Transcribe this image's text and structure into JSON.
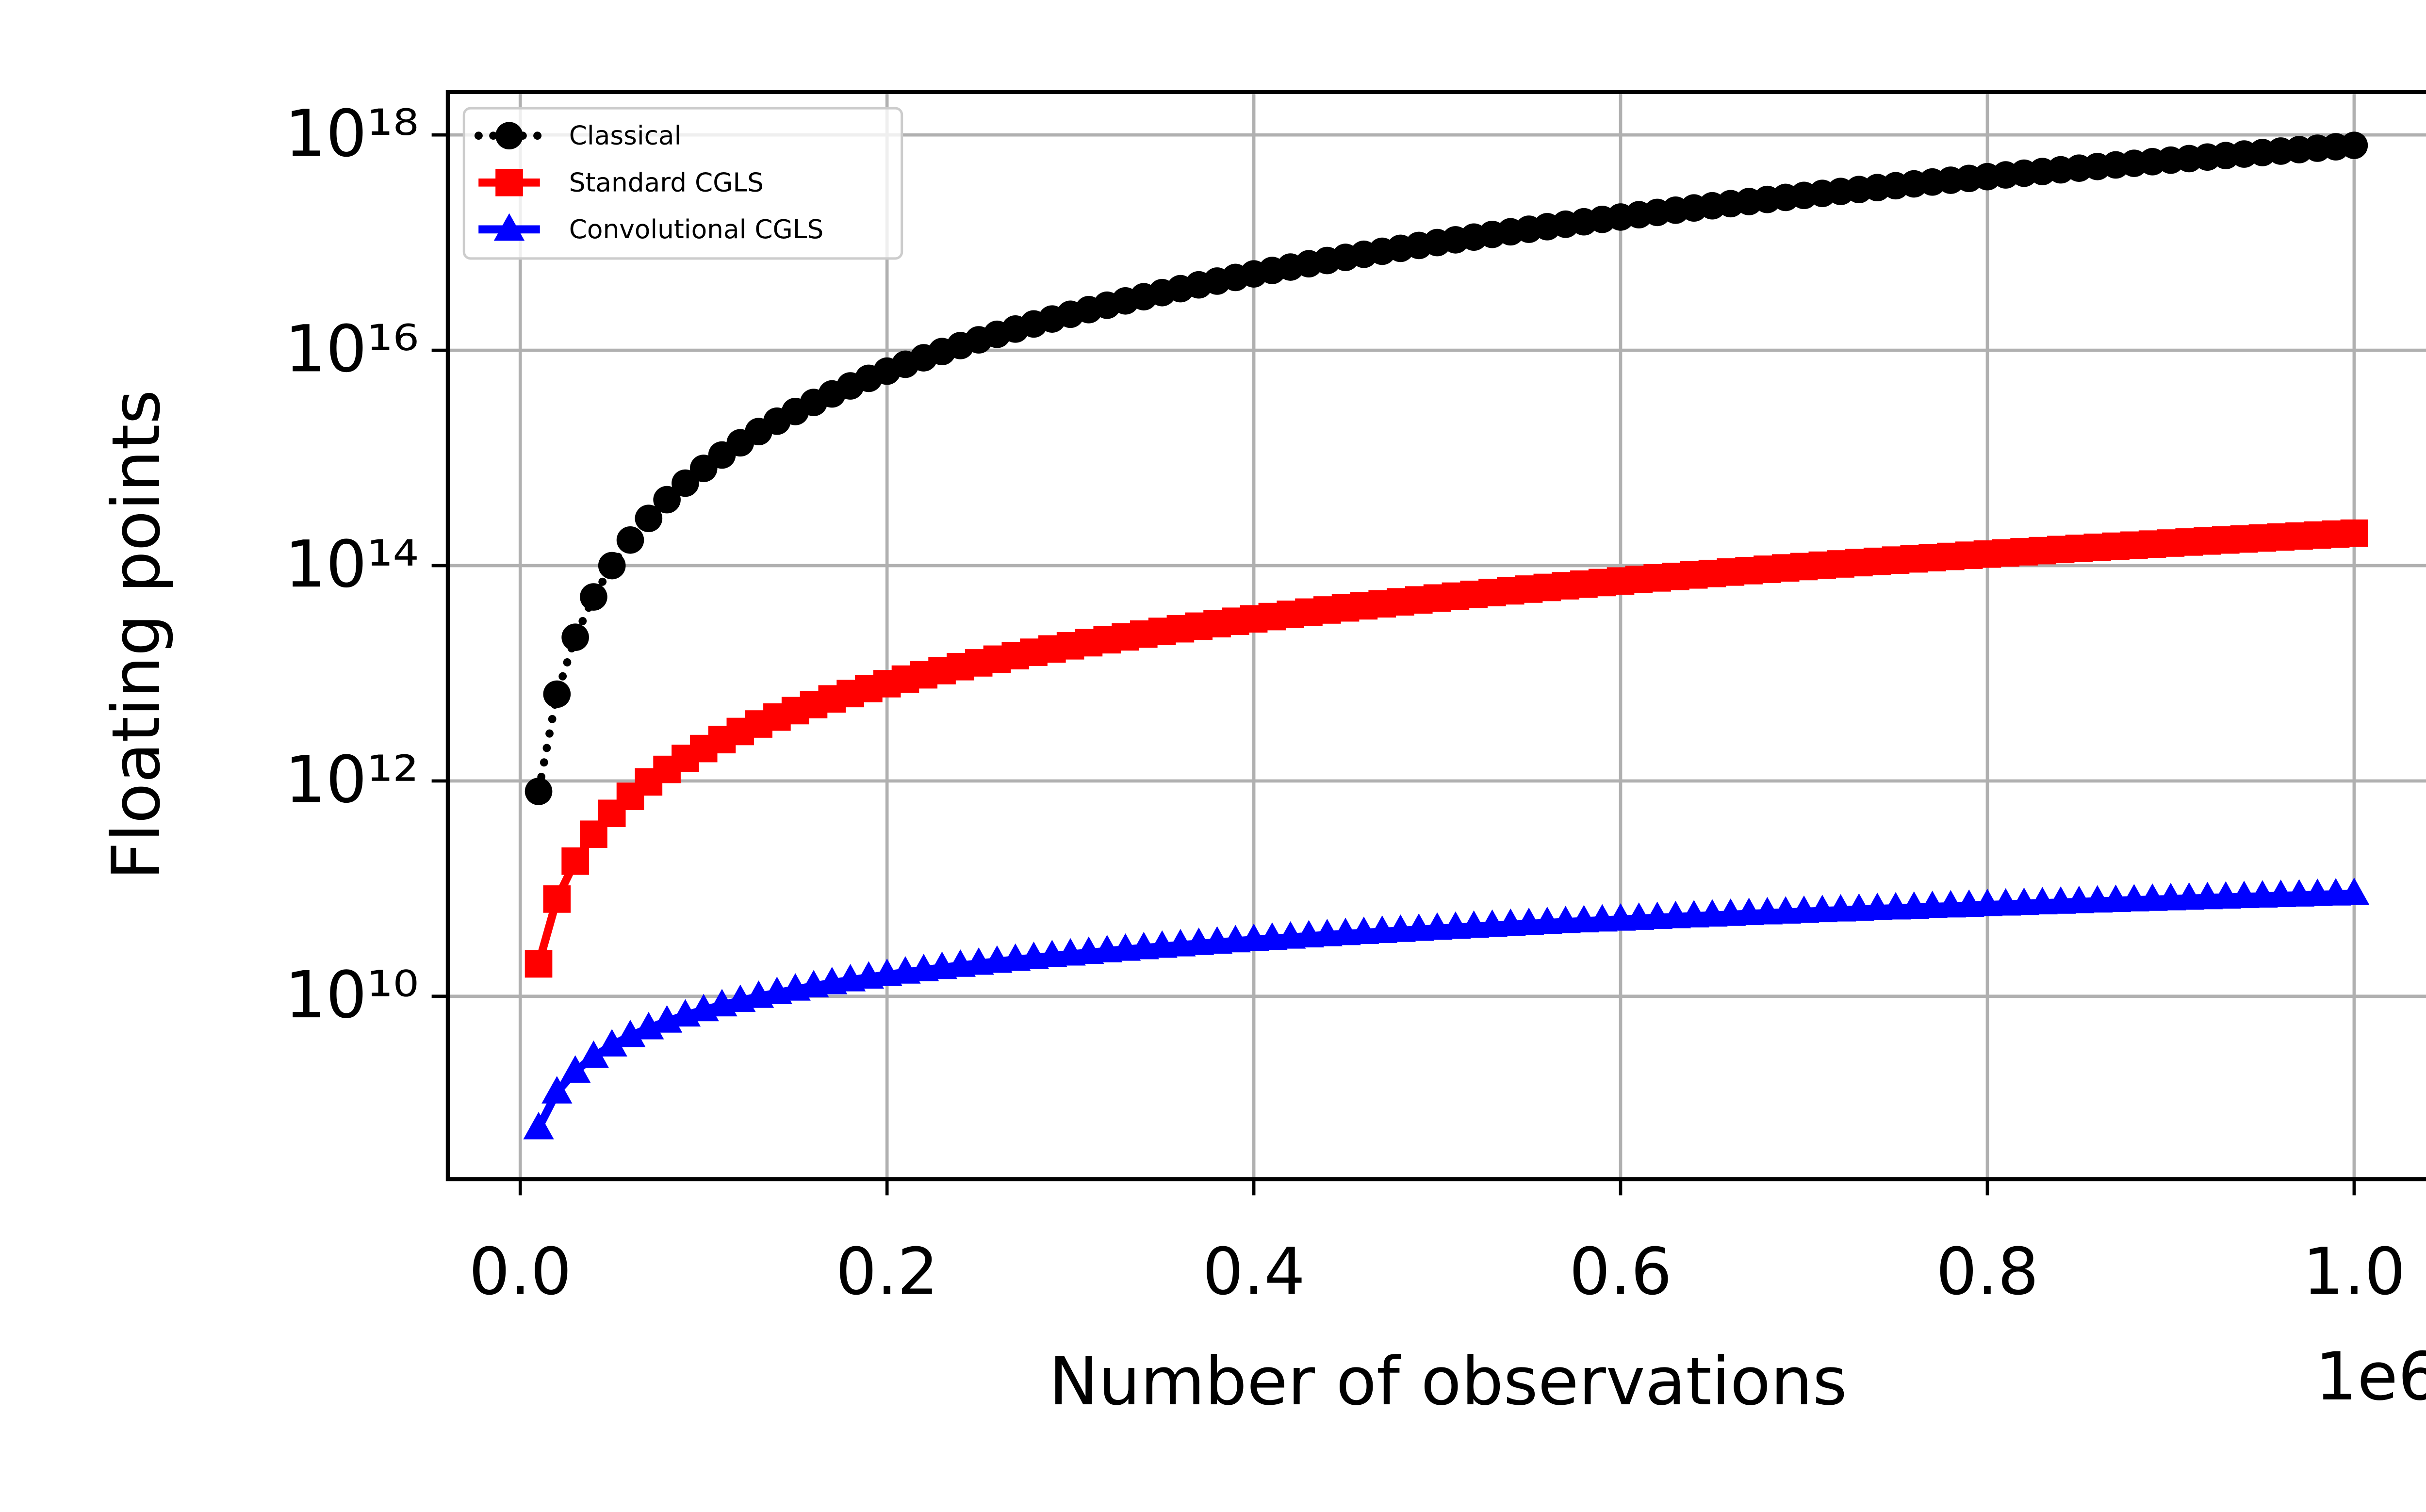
{
  "chart_data": {
    "type": "line",
    "x_label": "Number of observations",
    "y_label": "Floating points",
    "x_offset_label": "1e6",
    "y_scale": "log",
    "grid": true,
    "legend": "upper left",
    "xlim": [
      -39500,
      1049500
    ],
    "ylim": [
      200000000.0,
      2.5e+18
    ],
    "xticks": [
      {
        "value": 0,
        "label": "0.0"
      },
      {
        "value": 200000,
        "label": "0.2"
      },
      {
        "value": 400000,
        "label": "0.4"
      },
      {
        "value": 600000,
        "label": "0.6"
      },
      {
        "value": 800000,
        "label": "0.8"
      },
      {
        "value": 1000000,
        "label": "1.0"
      }
    ],
    "yticks": [
      {
        "value": 10000000000.0,
        "label": "10¹⁰"
      },
      {
        "value": 1000000000000.0,
        "label": "10¹²"
      },
      {
        "value": 100000000000000.0,
        "label": "10¹⁴"
      },
      {
        "value": 1e+16,
        "label": "10¹⁶"
      },
      {
        "value": 1e+18,
        "label": "10¹⁸"
      }
    ],
    "x": [
      10000,
      20000,
      30000,
      40000,
      50000,
      60000,
      70000,
      80000,
      90000,
      100000,
      110000,
      120000,
      130000,
      140000,
      150000,
      160000,
      170000,
      180000,
      190000,
      200000,
      210000,
      220000,
      230000,
      240000,
      250000,
      260000,
      270000,
      280000,
      290000,
      300000,
      310000,
      320000,
      330000,
      340000,
      350000,
      360000,
      370000,
      380000,
      390000,
      400000,
      410000,
      420000,
      430000,
      440000,
      450000,
      460000,
      470000,
      480000,
      490000,
      500000,
      510000,
      520000,
      530000,
      540000,
      550000,
      560000,
      570000,
      580000,
      590000,
      600000,
      610000,
      620000,
      630000,
      640000,
      650000,
      660000,
      670000,
      680000,
      690000,
      700000,
      710000,
      720000,
      730000,
      740000,
      750000,
      760000,
      770000,
      780000,
      790000,
      800000,
      810000,
      820000,
      830000,
      840000,
      850000,
      860000,
      870000,
      880000,
      890000,
      900000,
      910000,
      920000,
      930000,
      940000,
      950000,
      960000,
      970000,
      980000,
      990000,
      1000000
    ],
    "series": [
      {
        "name": "Classical",
        "color": "#000000",
        "marker": "circle",
        "linestyle": "dotted",
        "values": [
          800000000000.0,
          6400000000000.0,
          21600000000000.0,
          51200000000000.0,
          100000000000000.0,
          172800000000000.0,
          274400000000000.0,
          409600000000000.0,
          583200000000000.0,
          800000000000000.0,
          1064800000000000.0,
          1382400000000000.0,
          1757600000000000.0,
          2195200000000000.0,
          2700000000000000.0,
          3276800000000000.0,
          3930400000000000.0,
          4665600000000000.0,
          5487200000000000.0,
          6400000000000000.0,
          7408800000000000.0,
          8518400000000000.0,
          9733600000000000.0,
          1.10592e+16,
          1.25e+16,
          1.40608e+16,
          1.57464e+16,
          1.75616e+16,
          1.95112e+16,
          2.16e+16,
          2.38328e+16,
          2.62144e+16,
          2.87496e+16,
          3.14432e+16,
          3.43e+16,
          3.73248e+16,
          4.05224e+16,
          4.38976e+16,
          4.74552e+16,
          5.12e+16,
          5.51368e+16,
          5.92704e+16,
          6.36056e+16,
          6.81472e+16,
          7.29e+16,
          7.78688e+16,
          8.30584e+16,
          8.84736e+16,
          9.41192e+16,
          1e+17,
          1.061208e+17,
          1.124864e+17,
          1.191016e+17,
          1.259712e+17,
          1.331e+17,
          1.404928e+17,
          1.481544e+17,
          1.560896e+17,
          1.643032e+17,
          1.728e+17,
          1.815848e+17,
          1.906624e+17,
          2.000376e+17,
          2.097152e+17,
          2.197e+17,
          2.299968e+17,
          2.406104e+17,
          2.515456e+17,
          2.628072e+17,
          2.744e+17,
          2.863288e+17,
          2.985984e+17,
          3.112136e+17,
          3.241792e+17,
          3.375e+17,
          3.511808e+17,
          3.652264e+17,
          3.796416e+17,
          3.944312e+17,
          4.096e+17,
          4.251528e+17,
          4.410944e+17,
          4.574296e+17,
          4.741632e+17,
          4.913e+17,
          5.088448e+17,
          5.268024e+17,
          5.451776e+17,
          5.639752e+17,
          5.832e+17,
          6.028568e+17,
          6.229504e+17,
          6.434856e+17,
          6.644672e+17,
          6.859e+17,
          7.077888e+17,
          7.301384e+17,
          7.529536e+17,
          7.762392e+17,
          8e+17
        ]
      },
      {
        "name": "Standard CGLS",
        "color": "#ff0000",
        "marker": "square",
        "linestyle": "solid",
        "values": [
          20000000000.0,
          80000000000.0,
          180000000000.0,
          320000000000.0,
          500000000000.0,
          720000000000.0,
          980000000000.0,
          1280000000000.0,
          1620000000000.0,
          2000000000000.0,
          2420000000000.0,
          2880000000000.0,
          3380000000000.0,
          3920000000000.0,
          4500000000000.0,
          5120000000000.0,
          5780000000000.0,
          6480000000000.0,
          7220000000000.0,
          8000000000000.0,
          8820000000000.0,
          9680000000000.0,
          10580000000000.0,
          11520000000000.0,
          12500000000000.0,
          13520000000000.0,
          14580000000000.0,
          15680000000000.0,
          16820000000000.0,
          18000000000000.0,
          19220000000000.0,
          20480000000000.0,
          21780000000000.0,
          23120000000000.0,
          24500000000000.0,
          25920000000000.0,
          27380000000000.0,
          28880000000000.0,
          30420000000000.0,
          32000000000000.0,
          33620000000000.0,
          35280000000000.0,
          36980000000000.0,
          38720000000000.0,
          40500000000000.0,
          42320000000000.0,
          44180000000000.0,
          46080000000000.0,
          48020000000000.0,
          50000000000000.0,
          52020000000000.0,
          54080000000000.0,
          56180000000000.0,
          58320000000000.0,
          60500000000000.0,
          62720000000000.0,
          64980000000000.0,
          67280000000000.0,
          69620000000000.0,
          72000000000000.0,
          74420000000000.0,
          76880000000000.0,
          79380000000000.0,
          81920000000000.0,
          84500000000000.0,
          87120000000000.0,
          89780000000000.0,
          92480000000000.0,
          95220000000000.0,
          98000000000000.0,
          100820000000000.0,
          103680000000000.0,
          106580000000000.0,
          109520000000000.0,
          112500000000000.0,
          115520000000000.0,
          118580000000000.0,
          121680000000000.0,
          124820000000000.0,
          128000000000000.0,
          131220000000000.0,
          134480000000000.0,
          137780000000000.0,
          141120000000000.0,
          144500000000000.0,
          147920000000000.0,
          151380000000000.0,
          154880000000000.0,
          158420000000000.0,
          162000000000000.0,
          165620000000000.0,
          169280000000000.0,
          172980000000000.0,
          176720000000000.0,
          180500000000000.0,
          184320000000000.0,
          188180000000000.0,
          192080000000000.0,
          196020000000000.0,
          200000000000000.0
        ]
      },
      {
        "name": "Convolutional CGLS",
        "color": "#0000ff",
        "marker": "triangle",
        "linestyle": "solid",
        "values": [
          598000000.0,
          1286000000.0,
          2008000000.0,
          2752000000.0,
          3513000000.0,
          4286000000.0,
          5070000000.0,
          5860000000.0,
          6670000000.0,
          7470000000.0,
          8290000000.0,
          9110000000.0,
          9940000000.0,
          10770000000.0,
          11610000000.0,
          12450000000.0,
          13300000000.0,
          14140000000.0,
          15000000000.0,
          15850000000.0,
          16710000000.0,
          17570000000.0,
          18430000000.0,
          19310000000.0,
          20170000000.0,
          21050000000.0,
          21920000000.0,
          22810000000.0,
          23690000000.0,
          24570000000.0,
          25440000000.0,
          26340000000.0,
          27220000000.0,
          28120000000.0,
          29010000000.0,
          29910000000.0,
          30800000000.0,
          31700000000.0,
          32600000000.0,
          33500000000.0,
          34410000000.0,
          35310000000.0,
          36220000000.0,
          37130000000.0,
          38030000000.0,
          38940000000.0,
          39860000000.0,
          40770000000.0,
          41690000000.0,
          42600000000.0,
          43510000000.0,
          44440000000.0,
          45360000000.0,
          46280000000.0,
          47200000000.0,
          48130000000.0,
          49050000000.0,
          49970000000.0,
          50900000000.0,
          51830000000.0,
          52760000000.0,
          53690000000.0,
          54620000000.0,
          55560000000.0,
          56490000000.0,
          57420000000.0,
          58360000000.0,
          59290000000.0,
          60230000000.0,
          61170000000.0,
          62110000000.0,
          63050000000.0,
          63990000000.0,
          64940000000.0,
          65880000000.0,
          66820000000.0,
          67770000000.0,
          68710000000.0,
          69660000000.0,
          70600000000.0,
          71550000000.0,
          72500000000.0,
          73450000000.0,
          74400000000.0,
          75350000000.0,
          76300000000.0,
          77260000000.0,
          78210000000.0,
          79160000000.0,
          80120000000.0,
          81070000000.0,
          82030000000.0,
          82980000000.0,
          83940000000.0,
          84900000000.0,
          85860000000.0,
          86820000000.0,
          87780000000.0,
          88740000000.0,
          89700000000.0
        ]
      }
    ]
  }
}
